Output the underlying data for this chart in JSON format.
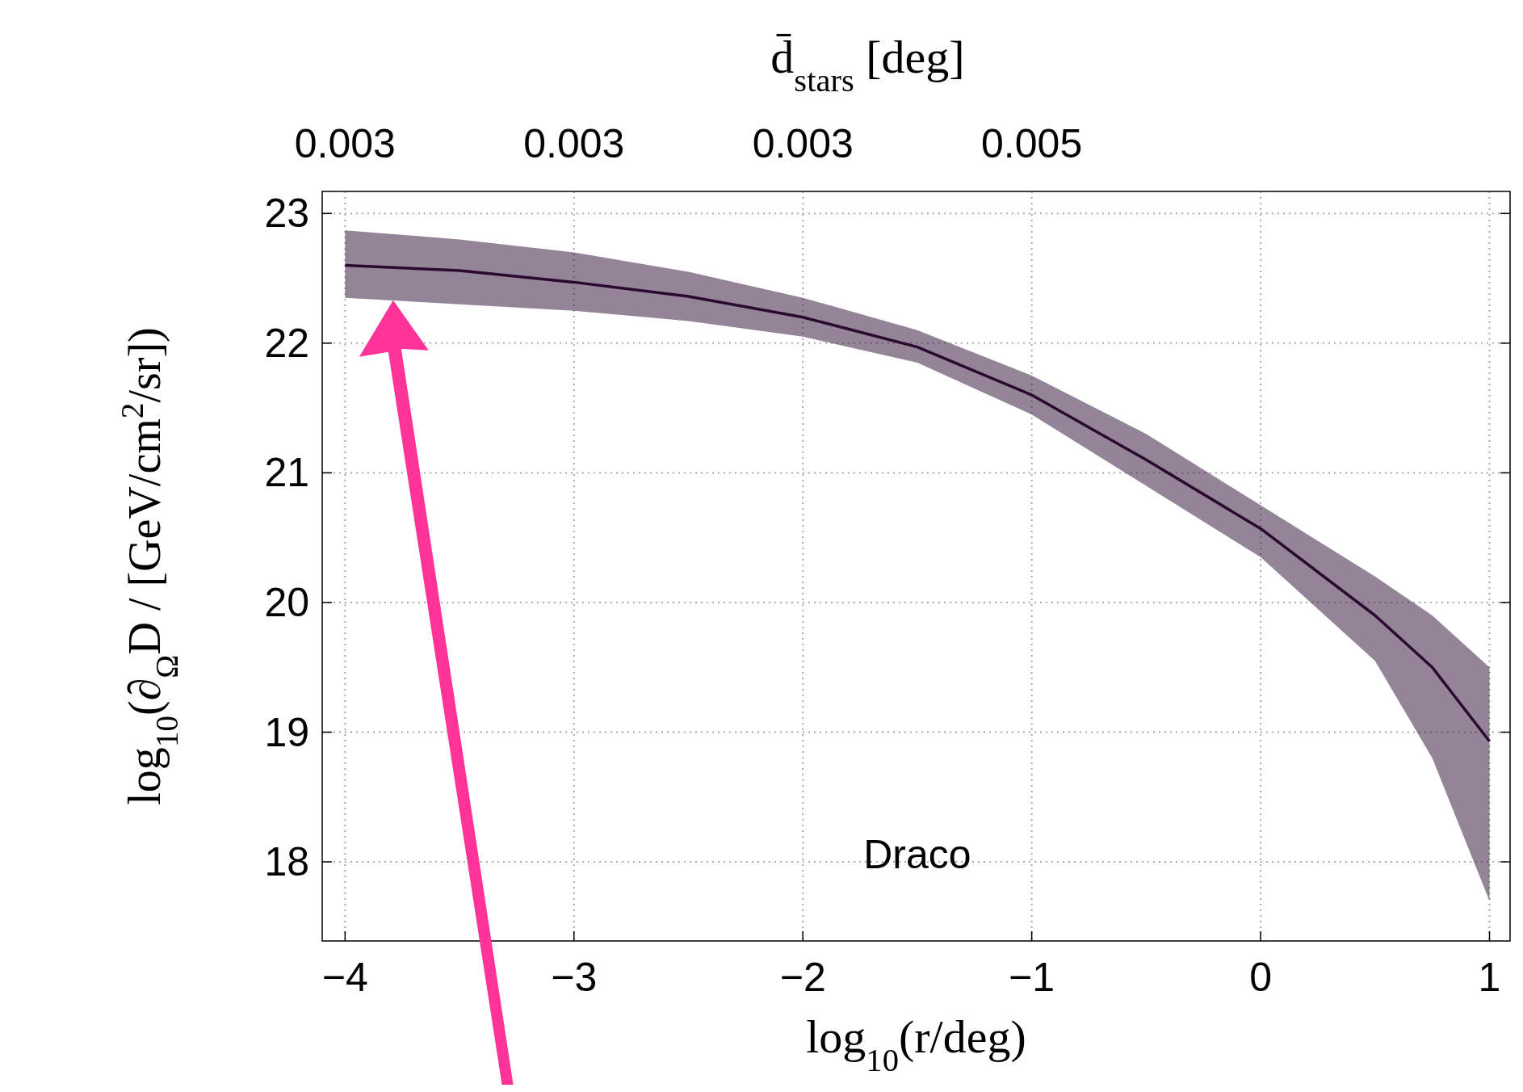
{
  "chart_data": {
    "type": "line",
    "xlabel": "log$_{10}$(r/deg)",
    "ylabel": "log$_{10}$(∂$_{Ω}$D / [GeV/cm$^{2}$/sr])",
    "x2label": "d̄$_{stars}$ [deg]",
    "annotations": [
      "Draco",
      "0.003",
      "0.003",
      "0.003",
      "0.005"
    ],
    "xlim": [
      -4.1,
      1.09
    ],
    "xticks": [
      {
        "value": -4,
        "label": "−4"
      },
      {
        "value": -3,
        "label": "−3"
      },
      {
        "value": -2,
        "label": "−2"
      },
      {
        "value": -1,
        "label": "−1"
      },
      0,
      1
    ],
    "ylim": [
      17.39,
      23.17
    ],
    "yticks": [
      18,
      19,
      20,
      21,
      22,
      23
    ],
    "grid": true,
    "line_style": "solid",
    "marker": "none",
    "series": [
      {
        "color": "#2a0a30",
        "x": [
          -4,
          -3.5,
          -3,
          -2.5,
          -2,
          -1.5,
          -1,
          -0.5,
          0,
          0.5,
          0.75,
          1
        ],
        "values": [
          22.6,
          22.56,
          22.47,
          22.36,
          22.2,
          21.97,
          21.6,
          21.1,
          20.57,
          19.9,
          19.5,
          18.93
        ],
        "lower": [
          22.35,
          22.3,
          22.25,
          22.17,
          22.05,
          21.85,
          21.45,
          20.9,
          20.35,
          19.55,
          18.8,
          17.7
        ],
        "upper": [
          22.87,
          22.8,
          22.7,
          22.55,
          22.35,
          22.1,
          21.75,
          21.3,
          20.75,
          20.2,
          19.9,
          19.5
        ]
      }
    ]
  }
}
